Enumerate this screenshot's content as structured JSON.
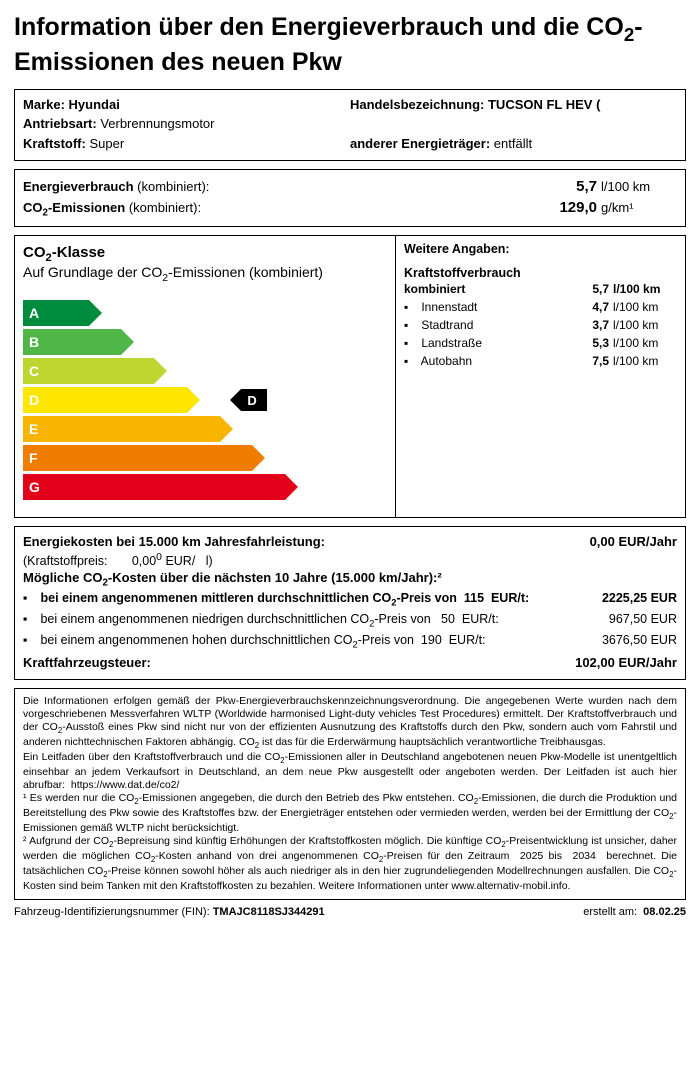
{
  "title_html": "Information über den Energieverbrauch und die CO<sub>2</sub>-Emissionen des neuen Pkw",
  "vehicle": {
    "marke_label": "Marke:",
    "marke": "Hyundai",
    "handel_label": "Handelsbezeichnung:",
    "handel": "TUCSON FL HEV (",
    "antrieb_label": "Antriebsart:",
    "antrieb": "Verbrennungsmotor",
    "kraftstoff_label": "Kraftstoff:",
    "kraftstoff": "Super",
    "anderer_label": "anderer Energieträger:",
    "anderer": "entfällt"
  },
  "energy": {
    "verbrauch_label_html": "<span class='lab'>Energieverbrauch</span> (kombiniert):",
    "verbrauch_val": "5,7",
    "verbrauch_unit": "l/100 km",
    "co2_label_html": "<span class='lab'>CO<sub>2</sub>-Emissionen</span> (kombiniert):",
    "co2_val": "129,0",
    "co2_unit": "g/km¹"
  },
  "co2class": {
    "title_html": "CO<sub>2</sub>-Klasse",
    "subtitle_html": "Auf Grundlage der CO<sub>2</sub>-Emissionen (kombiniert)",
    "bars": [
      {
        "letter": "A",
        "width_pct": 18,
        "color": "#008c3f"
      },
      {
        "letter": "B",
        "width_pct": 27,
        "color": "#4fb647"
      },
      {
        "letter": "C",
        "width_pct": 36,
        "color": "#bdd630"
      },
      {
        "letter": "D",
        "width_pct": 45,
        "color": "#ffe600"
      },
      {
        "letter": "E",
        "width_pct": 54,
        "color": "#f9b400"
      },
      {
        "letter": "F",
        "width_pct": 63,
        "color": "#f07d00"
      },
      {
        "letter": "G",
        "width_pct": 72,
        "color": "#e2001a"
      }
    ],
    "indicator_letter": "D",
    "indicator_row_index": 3,
    "indicator_left_pct": 60
  },
  "weitere": {
    "heading": "Weitere Angaben:",
    "kraftstoff_heading": "Kraftstoffverbrauch",
    "rows": [
      {
        "label": "kombiniert",
        "value": "5,7",
        "unit": "l/100 km",
        "bold": true
      },
      {
        "label": "Innenstadt",
        "value": "4,7",
        "unit": "l/100 km",
        "bullet": true
      },
      {
        "label": "Stadtrand",
        "value": "3,7",
        "unit": "l/100 km",
        "bullet": true
      },
      {
        "label": "Landstraße",
        "value": "5,3",
        "unit": "l/100 km",
        "bullet": true
      },
      {
        "label": "Autobahn",
        "value": "7,5",
        "unit": "l/100 km",
        "bullet": true
      }
    ]
  },
  "costs": {
    "annual_label": "Energiekosten bei 15.000 km Jahresfahrleistung:",
    "annual_value": "0,00 EUR/Jahr",
    "price_line_html": "(Kraftstoffpreis:&nbsp;&nbsp;&nbsp;&nbsp;&nbsp;&nbsp;&nbsp;0,00<sup>0</sup> EUR/&nbsp;&nbsp;&nbsp;l)",
    "ten_year_label_html": "Mögliche CO<sub>2</sub>-Kosten über die nächsten 10 Jahre (15.000 km/Jahr):²",
    "items": [
      {
        "text_html": "bei einem angenommenen mittleren durchschnittlichen CO<sub>2</sub>-Preis von&nbsp;&nbsp;115&nbsp;&nbsp;EUR/t:",
        "amount": "2225,25 EUR",
        "bold": true
      },
      {
        "text_html": "bei einem angenommenen niedrigen durchschnittlichen CO<sub>2</sub>-Preis von&nbsp;&nbsp;&nbsp;50&nbsp;&nbsp;EUR/t:",
        "amount": "967,50 EUR"
      },
      {
        "text_html": "bei einem angenommenen hohen durchschnittlichen CO<sub>2</sub>-Preis von&nbsp;&nbsp;190&nbsp;&nbsp;EUR/t:",
        "amount": "3676,50 EUR"
      }
    ],
    "tax_label": "Kraftfahrzeugsteuer:",
    "tax_value": "102,00 EUR/Jahr"
  },
  "footnote_html": "Die Informationen erfolgen gemäß der Pkw-Energieverbrauchskennzeichnungsverordnung. Die angegebenen Werte wurden nach dem vorgeschriebenen Messverfahren WLTP (Worldwide harmonised Light-duty vehicles Test Procedures) ermittelt. Der Kraftstoffverbrauch und der CO<sub>2</sub>-Ausstoß eines Pkw sind nicht nur von der effizienten Ausnutzung des Kraftstoffs durch den Pkw, sondern auch vom Fahrstil und anderen nichttechnischen Faktoren abhängig. CO<sub>2</sub> ist das für die Erderwärmung hauptsächlich verantwortliche Treibhausgas.<br>Ein Leitfaden über den Kraftstoffverbrauch und die CO<sub>2</sub>-Emissionen aller in Deutschland angebotenen neuen Pkw-Modelle ist unentgeltlich einsehbar an jedem Verkaufsort in Deutschland, an dem neue Pkw ausgestellt oder angeboten werden. Der Leitfaden ist auch hier abrufbar:&nbsp;&nbsp;https://www.dat.de/co2/<br>¹ Es werden nur die CO<sub>2</sub>-Emissionen angegeben, die durch den Betrieb des Pkw entstehen. CO<sub>2</sub>-Emissionen, die durch die Produktion und Bereitstellung des Pkw sowie des Kraftstoffes bzw. der Energieträger entstehen oder vermieden werden, werden bei der Ermittlung der CO<sub>2</sub>-Emissionen gemäß WLTP nicht berücksichtigt.<br>² Aufgrund der CO<sub>2</sub>-Bepreisung sind künftig Erhöhungen der Kraftstoffkosten möglich. Die künftige CO<sub>2</sub>-Preisentwicklung ist unsicher, daher werden die möglichen CO<sub>2</sub>-Kosten anhand von drei angenommenen CO<sub>2</sub>-Preisen für den Zeitraum&nbsp;&nbsp;2025 bis&nbsp;&nbsp;2034&nbsp;&nbsp;berechnet. Die tatsächlichen CO<sub>2</sub>-Preise können sowohl höher als auch niedriger als in den hier zugrundeliegenden Modellrechnungen ausfallen. Die CO<sub>2</sub>-Kosten sind beim Tanken mit den Kraftstoffkosten zu bezahlen. Weitere Informationen unter www.alternativ-mobil.info.",
  "bottom": {
    "fin_label": "Fahrzeug-Identifizierungsnummer (FIN):",
    "fin": "TMAJC8118SJ344291",
    "erstellt_label": "erstellt am:",
    "erstellt": "08.02.25"
  }
}
